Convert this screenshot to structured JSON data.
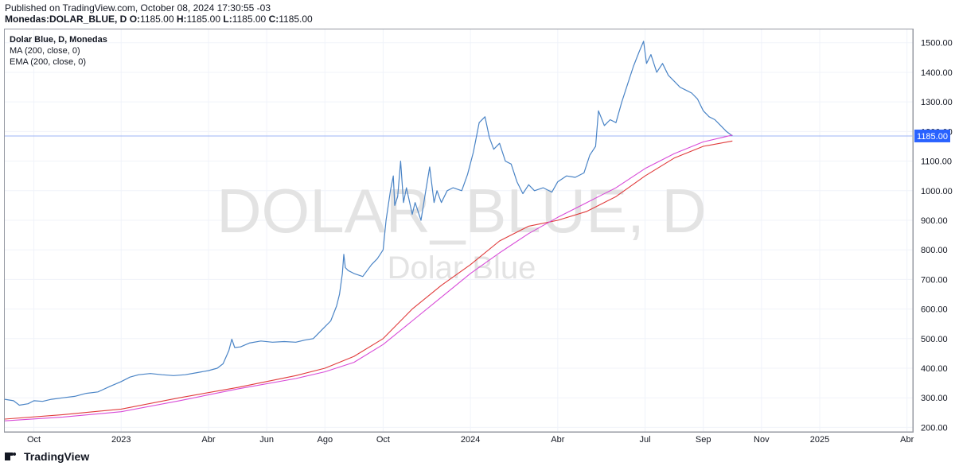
{
  "header": {
    "published": "Published on TradingView.com, October 08, 2024 17:30:55 -03",
    "symbol": "Monedas:DOLAR_BLUE, D",
    "o_label": "O:",
    "o_value": "1185.00",
    "h_label": "H:",
    "h_value": "1185.00",
    "l_label": "L:",
    "l_value": "1185.00",
    "c_label": "C:",
    "c_value": "1185.00"
  },
  "legend": {
    "line1": "Dolar Blue, D, Monedas",
    "line2": "MA (200, close, 0)",
    "line3": "EMA (200, close, 0)"
  },
  "watermark": {
    "symbol": "DOLAR_BLUE, D",
    "name": "Dolar Blue"
  },
  "footer": {
    "brand": "TradingView"
  },
  "colors": {
    "price": "#4a84c6",
    "ma": "#e03a3a",
    "ema": "#d84bd8",
    "last_price_bg": "#2962ff",
    "price_line": "#9db4f5",
    "grid": "#f0f3fa",
    "watermark": "#e3e3e3"
  },
  "chart_data": {
    "type": "line",
    "title": "Dolar Blue, D, Monedas",
    "x_unit": "months since Sep 2022",
    "xlim": [
      0,
      31.2
    ],
    "ylim": [
      185,
      1545
    ],
    "y_ticks": [
      200,
      300,
      400,
      500,
      600,
      700,
      800,
      900,
      1000,
      1100,
      1200,
      1300,
      1400,
      1500
    ],
    "y_tick_labels": [
      "200.00",
      "300.00",
      "400.00",
      "500.00",
      "600.00",
      "700.00",
      "800.00",
      "900.00",
      "1000.00",
      "1100.00",
      "1200.00",
      "1300.00",
      "1400.00",
      "1500.00"
    ],
    "x_ticks": [
      {
        "x": 1,
        "label": "Oct"
      },
      {
        "x": 4,
        "label": "2023"
      },
      {
        "x": 7,
        "label": "Abr"
      },
      {
        "x": 9,
        "label": "Jun"
      },
      {
        "x": 11,
        "label": "Ago"
      },
      {
        "x": 13,
        "label": "Oct"
      },
      {
        "x": 16,
        "label": "2024"
      },
      {
        "x": 19,
        "label": "Abr"
      },
      {
        "x": 22,
        "label": "Jul"
      },
      {
        "x": 24,
        "label": "Sep"
      },
      {
        "x": 26,
        "label": "Nov"
      },
      {
        "x": 28,
        "label": "2025"
      },
      {
        "x": 31,
        "label": "Abr"
      }
    ],
    "last_price": 1185,
    "last_price_label": "1185.00",
    "series": [
      {
        "name": "Dolar Blue",
        "points": [
          [
            0.0,
            295
          ],
          [
            0.3,
            290
          ],
          [
            0.5,
            275
          ],
          [
            0.8,
            280
          ],
          [
            1.0,
            290
          ],
          [
            1.3,
            288
          ],
          [
            1.6,
            295
          ],
          [
            2.0,
            300
          ],
          [
            2.4,
            305
          ],
          [
            2.8,
            315
          ],
          [
            3.2,
            320
          ],
          [
            3.6,
            338
          ],
          [
            4.0,
            355
          ],
          [
            4.3,
            370
          ],
          [
            4.6,
            378
          ],
          [
            5.0,
            382
          ],
          [
            5.4,
            378
          ],
          [
            5.8,
            375
          ],
          [
            6.2,
            378
          ],
          [
            6.6,
            385
          ],
          [
            7.0,
            392
          ],
          [
            7.3,
            400
          ],
          [
            7.5,
            415
          ],
          [
            7.7,
            460
          ],
          [
            7.8,
            498
          ],
          [
            7.9,
            470
          ],
          [
            8.1,
            472
          ],
          [
            8.4,
            485
          ],
          [
            8.8,
            492
          ],
          [
            9.2,
            488
          ],
          [
            9.6,
            490
          ],
          [
            10.0,
            488
          ],
          [
            10.3,
            495
          ],
          [
            10.6,
            500
          ],
          [
            10.9,
            530
          ],
          [
            11.2,
            560
          ],
          [
            11.4,
            610
          ],
          [
            11.5,
            650
          ],
          [
            11.6,
            720
          ],
          [
            11.65,
            785
          ],
          [
            11.7,
            740
          ],
          [
            11.8,
            730
          ],
          [
            12.0,
            720
          ],
          [
            12.3,
            710
          ],
          [
            12.6,
            750
          ],
          [
            12.8,
            770
          ],
          [
            13.0,
            800
          ],
          [
            13.1,
            900
          ],
          [
            13.25,
            1000
          ],
          [
            13.35,
            1050
          ],
          [
            13.4,
            950
          ],
          [
            13.5,
            980
          ],
          [
            13.6,
            1100
          ],
          [
            13.7,
            960
          ],
          [
            13.8,
            1010
          ],
          [
            14.0,
            920
          ],
          [
            14.1,
            960
          ],
          [
            14.3,
            900
          ],
          [
            14.45,
            990
          ],
          [
            14.6,
            1080
          ],
          [
            14.75,
            960
          ],
          [
            14.85,
            1000
          ],
          [
            15.0,
            960
          ],
          [
            15.2,
            1000
          ],
          [
            15.4,
            1010
          ],
          [
            15.7,
            1000
          ],
          [
            15.9,
            1055
          ],
          [
            16.1,
            1130
          ],
          [
            16.3,
            1230
          ],
          [
            16.5,
            1250
          ],
          [
            16.65,
            1180
          ],
          [
            16.8,
            1140
          ],
          [
            17.0,
            1160
          ],
          [
            17.2,
            1100
          ],
          [
            17.4,
            1090
          ],
          [
            17.6,
            1030
          ],
          [
            17.8,
            990
          ],
          [
            18.0,
            1020
          ],
          [
            18.2,
            1000
          ],
          [
            18.5,
            1010
          ],
          [
            18.8,
            995
          ],
          [
            19.0,
            1030
          ],
          [
            19.3,
            1050
          ],
          [
            19.6,
            1045
          ],
          [
            19.9,
            1060
          ],
          [
            20.1,
            1120
          ],
          [
            20.3,
            1150
          ],
          [
            20.4,
            1270
          ],
          [
            20.6,
            1220
          ],
          [
            20.8,
            1240
          ],
          [
            21.0,
            1230
          ],
          [
            21.2,
            1300
          ],
          [
            21.4,
            1360
          ],
          [
            21.6,
            1420
          ],
          [
            21.8,
            1470
          ],
          [
            21.95,
            1505
          ],
          [
            22.05,
            1430
          ],
          [
            22.2,
            1460
          ],
          [
            22.4,
            1400
          ],
          [
            22.6,
            1430
          ],
          [
            22.8,
            1390
          ],
          [
            23.0,
            1370
          ],
          [
            23.2,
            1350
          ],
          [
            23.4,
            1340
          ],
          [
            23.6,
            1330
          ],
          [
            23.8,
            1310
          ],
          [
            24.0,
            1270
          ],
          [
            24.2,
            1250
          ],
          [
            24.4,
            1240
          ],
          [
            24.6,
            1220
          ],
          [
            24.8,
            1200
          ],
          [
            25.0,
            1185
          ]
        ]
      },
      {
        "name": "MA (200, close, 0)",
        "points": [
          [
            0,
            228
          ],
          [
            2,
            243
          ],
          [
            4,
            262
          ],
          [
            6,
            300
          ],
          [
            8,
            335
          ],
          [
            10,
            375
          ],
          [
            11,
            400
          ],
          [
            12,
            440
          ],
          [
            13,
            500
          ],
          [
            14,
            600
          ],
          [
            15,
            680
          ],
          [
            16,
            750
          ],
          [
            17,
            830
          ],
          [
            18,
            880
          ],
          [
            19,
            900
          ],
          [
            20,
            930
          ],
          [
            21,
            980
          ],
          [
            22,
            1050
          ],
          [
            23,
            1110
          ],
          [
            24,
            1150
          ],
          [
            25,
            1168
          ]
        ]
      },
      {
        "name": "EMA (200, close, 0)",
        "points": [
          [
            0,
            222
          ],
          [
            2,
            235
          ],
          [
            4,
            253
          ],
          [
            6,
            290
          ],
          [
            8,
            330
          ],
          [
            10,
            365
          ],
          [
            11,
            388
          ],
          [
            12,
            420
          ],
          [
            13,
            480
          ],
          [
            14,
            560
          ],
          [
            15,
            640
          ],
          [
            16,
            720
          ],
          [
            17,
            790
          ],
          [
            18,
            855
          ],
          [
            19,
            910
          ],
          [
            20,
            960
          ],
          [
            21,
            1010
          ],
          [
            22,
            1075
          ],
          [
            23,
            1125
          ],
          [
            24,
            1165
          ],
          [
            25,
            1188
          ]
        ]
      }
    ]
  }
}
